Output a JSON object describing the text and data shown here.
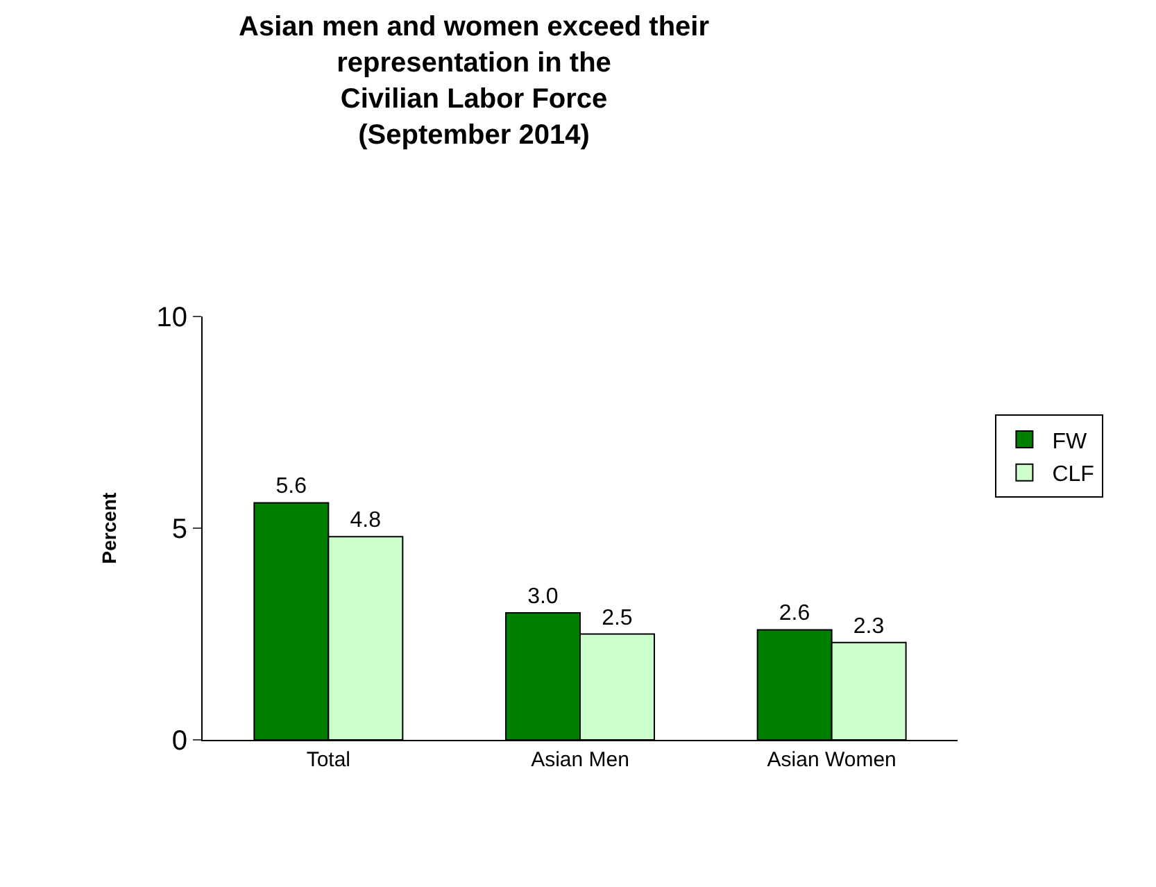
{
  "chart_data": {
    "type": "bar",
    "title": "Asian men and women exceed their\nrepresentation in the\nCivilian Labor Force\n(September 2014)",
    "ylabel": "Percent",
    "categories": [
      "Total",
      "Asian Men",
      "Asian Women"
    ],
    "series": [
      {
        "name": "FW",
        "color": "#008000",
        "values": [
          5.6,
          3.0,
          2.6
        ],
        "value_labels": [
          "5.6",
          "3.0",
          "2.6"
        ]
      },
      {
        "name": "CLF",
        "color": "#ccffcc",
        "values": [
          4.8,
          2.5,
          2.3
        ],
        "value_labels": [
          "4.8",
          "2.5",
          "2.3"
        ]
      }
    ],
    "ylim": [
      0,
      10
    ],
    "yticks": [
      0,
      5,
      10
    ],
    "legend": "right"
  }
}
